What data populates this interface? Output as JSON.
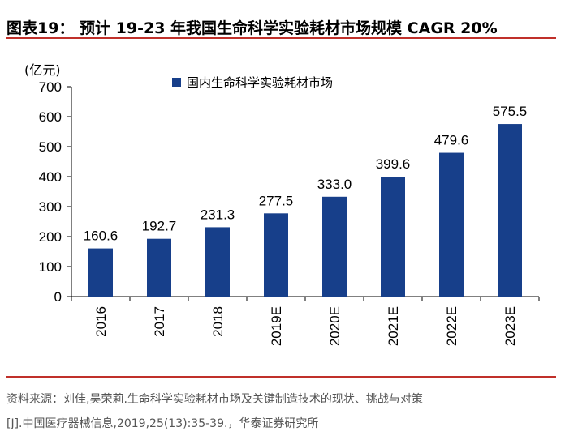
{
  "title": "图表19：  预计 19-23 年我国生命科学实验耗材市场规模 CAGR 20%",
  "source_line1": "资料来源：刘佳,吴荣莉.生命科学实验耗材市场及关键制造技术的现状、挑战与对策",
  "source_line2": "[J].中国医疗器械信息,2019,25(13):35-39.，华泰证券研究所",
  "chart_data": {
    "type": "bar",
    "ylabel": "(亿元)",
    "ylim": [
      0,
      700
    ],
    "yticks": [
      0,
      100,
      200,
      300,
      400,
      500,
      600,
      700
    ],
    "categories": [
      "2016",
      "2017",
      "2018",
      "2019E",
      "2020E",
      "2021E",
      "2022E",
      "2023E"
    ],
    "series": [
      {
        "name": "国内生命科学实验耗材市场",
        "values": [
          160.6,
          192.7,
          231.3,
          277.5,
          333.0,
          399.6,
          479.6,
          575.5
        ],
        "labels": [
          "160.6",
          "192.7",
          "231.3",
          "277.5",
          "333.0",
          "399.6",
          "479.6",
          "575.5"
        ],
        "color": "#173f8a"
      }
    ],
    "legend": "top-left",
    "grid": false,
    "colors": {
      "bar": "#173f8a",
      "rule": "#c0302a"
    }
  }
}
